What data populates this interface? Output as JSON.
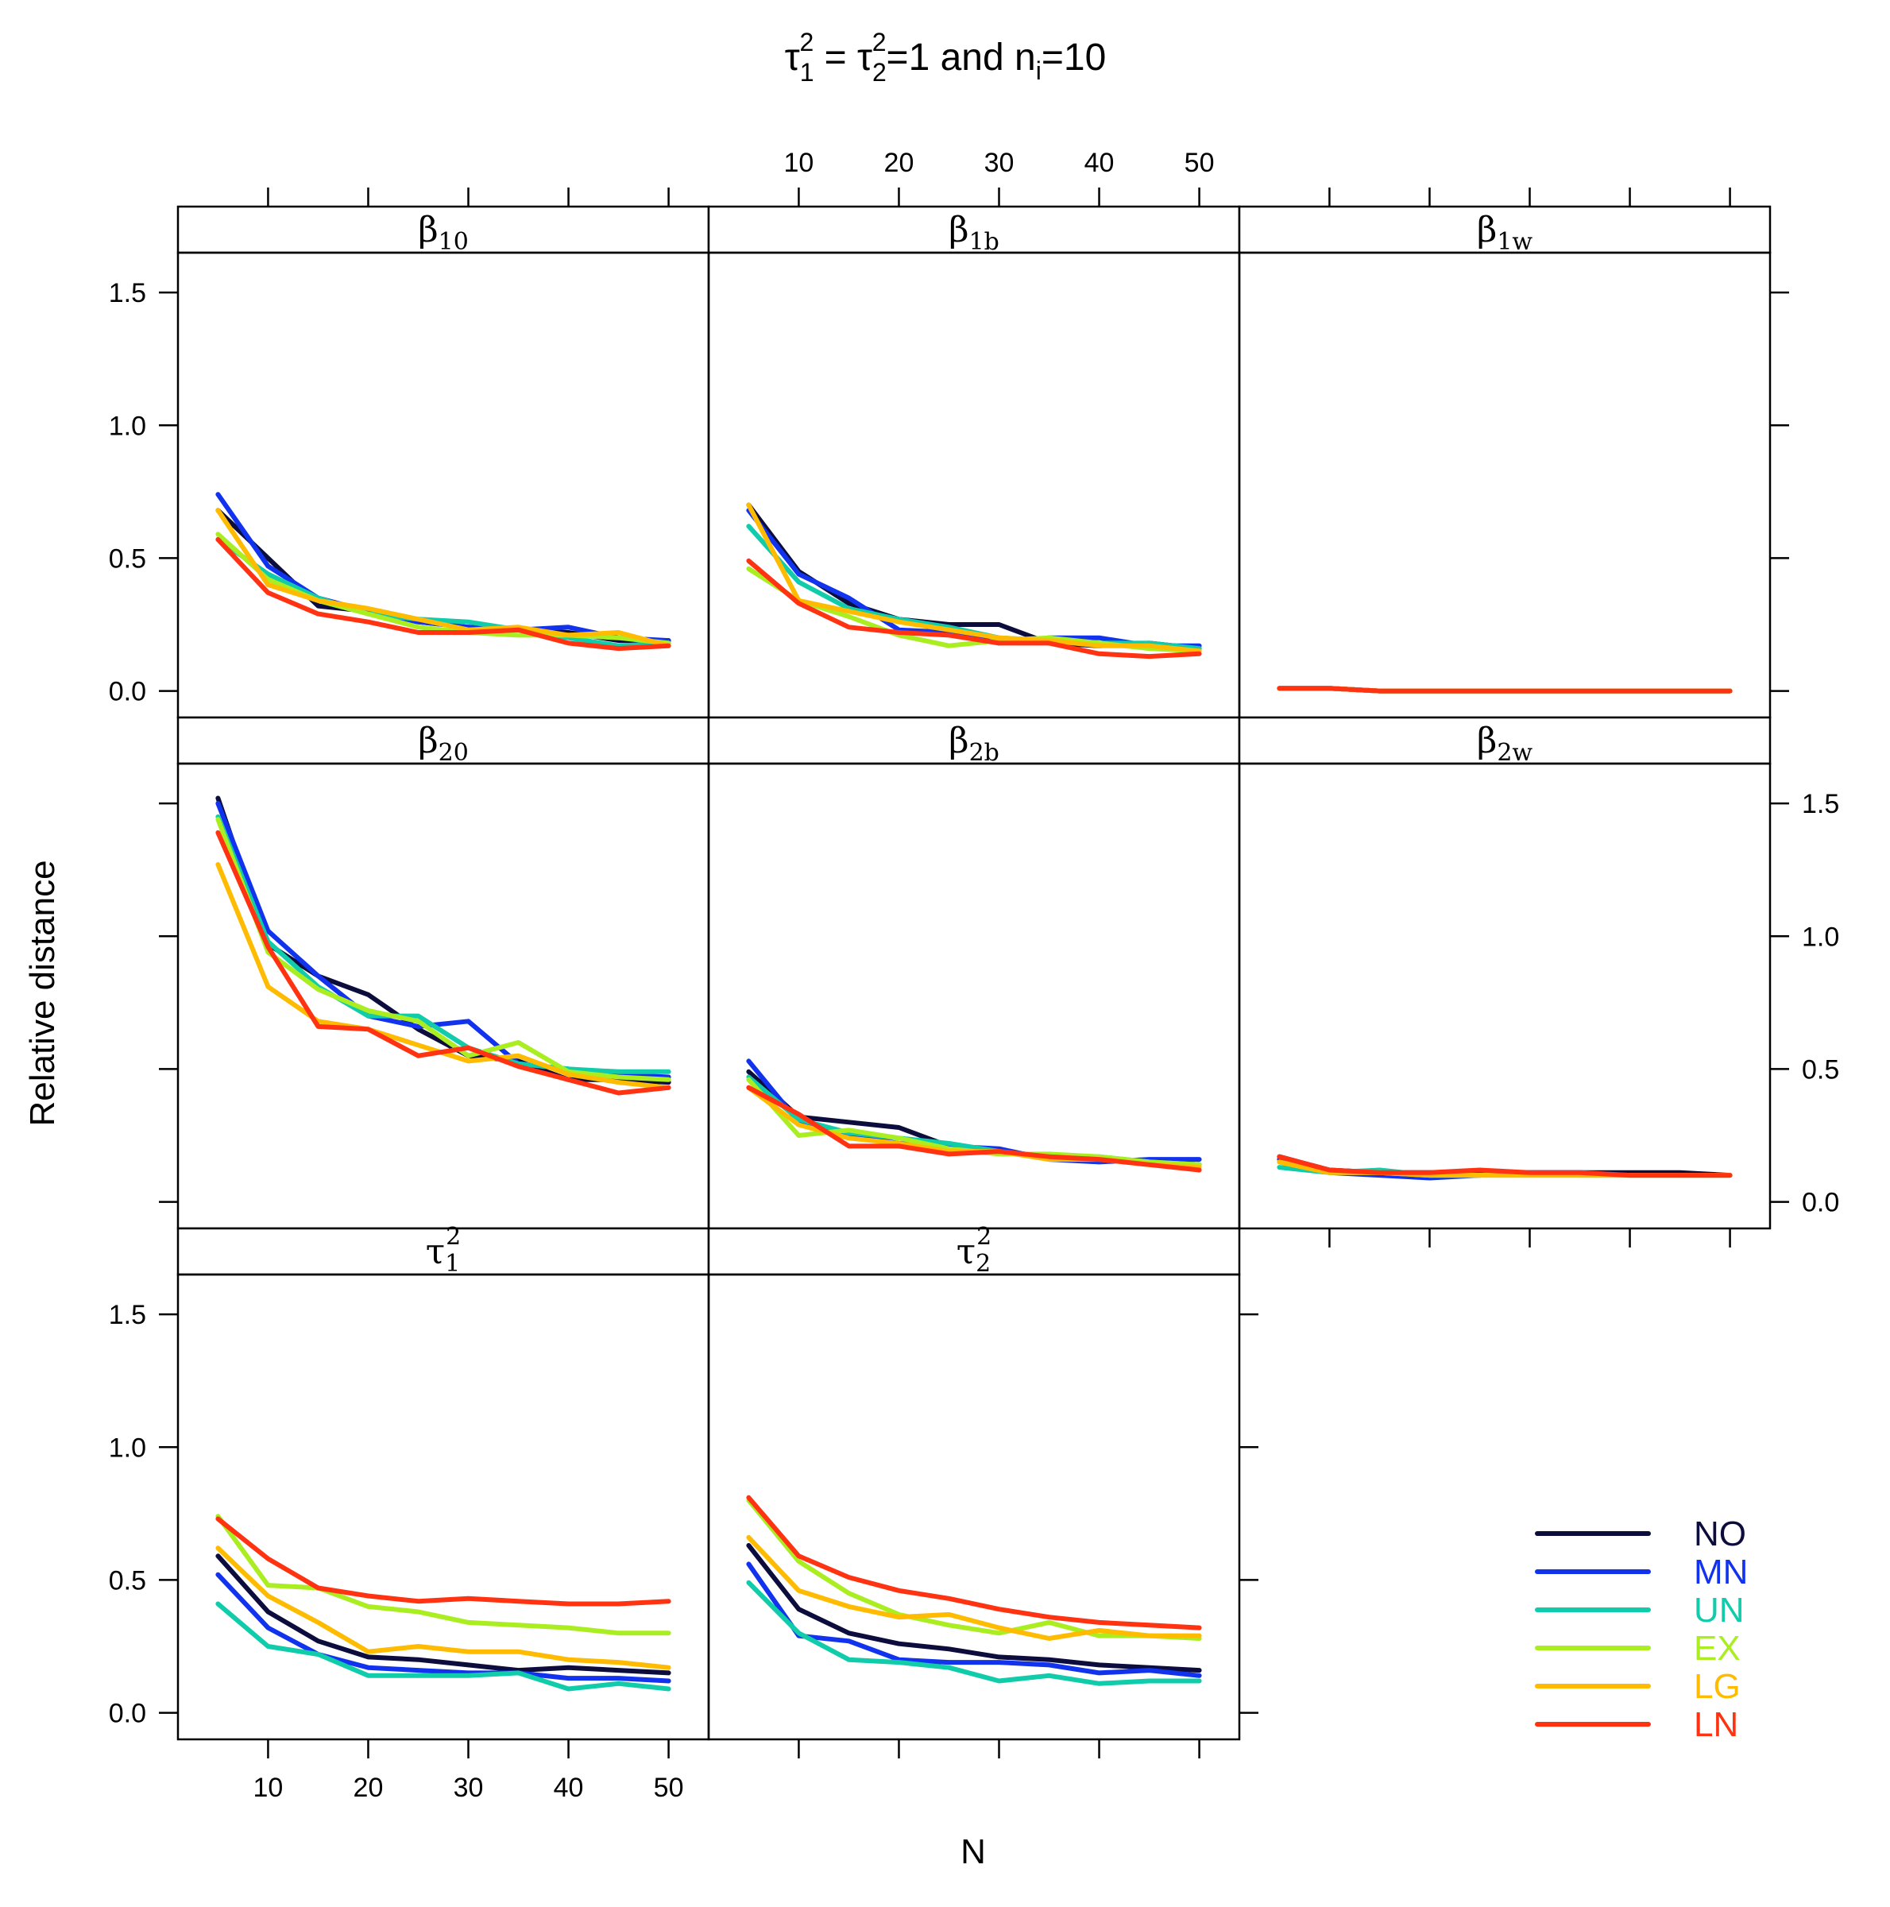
{
  "chart_data": {
    "type": "line",
    "title": {
      "tau": "τ",
      "sub1": "1",
      "sup1": "2",
      "eq": " = ",
      "sub2": "2",
      "sup2": "2",
      "rest1": "=1 and n",
      "subi": "i",
      "rest2": "=10"
    },
    "xlabel": "N",
    "ylabel": "Relative distance",
    "xlim": [
      1,
      54
    ],
    "ylim": [
      -0.1,
      1.65
    ],
    "x_ticks": [
      10,
      20,
      30,
      40,
      50
    ],
    "y_ticks": [
      0.0,
      0.5,
      1.0,
      1.5
    ],
    "x_tick_labels": [
      "10",
      "20",
      "30",
      "40",
      "50"
    ],
    "y_tick_labels": [
      "0.0",
      "0.5",
      "1.0",
      "1.5"
    ],
    "x": [
      5,
      10,
      15,
      20,
      25,
      30,
      35,
      40,
      45,
      50
    ],
    "legend": {
      "position": "bottom-right",
      "entries": [
        {
          "name": "NO",
          "color": "#0d0d3d"
        },
        {
          "name": "MN",
          "color": "#1133ee"
        },
        {
          "name": "UN",
          "color": "#11ccaa"
        },
        {
          "name": "EX",
          "color": "#aaee22"
        },
        {
          "name": "LG",
          "color": "#ffbb00"
        },
        {
          "name": "LN",
          "color": "#ff3311"
        }
      ]
    },
    "panels": [
      {
        "id": "beta10",
        "strip": {
          "sym": "β",
          "sub": "10"
        },
        "series": {
          "NO": [
            0.68,
            0.5,
            0.32,
            0.3,
            0.26,
            0.24,
            0.23,
            0.22,
            0.19,
            0.19
          ],
          "MN": [
            0.74,
            0.47,
            0.35,
            0.3,
            0.26,
            0.24,
            0.23,
            0.24,
            0.2,
            0.19
          ],
          "UN": [
            0.57,
            0.44,
            0.35,
            0.29,
            0.27,
            0.26,
            0.23,
            0.2,
            0.17,
            0.18
          ],
          "EX": [
            0.59,
            0.42,
            0.34,
            0.29,
            0.24,
            0.22,
            0.21,
            0.21,
            0.2,
            0.18
          ],
          "LG": [
            0.68,
            0.4,
            0.34,
            0.31,
            0.27,
            0.23,
            0.24,
            0.21,
            0.22,
            0.17
          ],
          "LN": [
            0.57,
            0.37,
            0.29,
            0.26,
            0.22,
            0.22,
            0.23,
            0.18,
            0.16,
            0.17
          ]
        }
      },
      {
        "id": "beta1b",
        "strip": {
          "sym": "β",
          "sub": "1b"
        },
        "series": {
          "NO": [
            0.7,
            0.45,
            0.33,
            0.27,
            0.25,
            0.25,
            0.18,
            0.17,
            0.18,
            0.16
          ],
          "MN": [
            0.68,
            0.44,
            0.35,
            0.23,
            0.22,
            0.18,
            0.2,
            0.2,
            0.17,
            0.17
          ],
          "UN": [
            0.62,
            0.41,
            0.31,
            0.27,
            0.24,
            0.2,
            0.19,
            0.18,
            0.18,
            0.16
          ],
          "EX": [
            0.46,
            0.34,
            0.28,
            0.21,
            0.17,
            0.19,
            0.2,
            0.18,
            0.16,
            0.15
          ],
          "LG": [
            0.7,
            0.34,
            0.3,
            0.26,
            0.23,
            0.2,
            0.19,
            0.17,
            0.17,
            0.15
          ],
          "LN": [
            0.49,
            0.33,
            0.24,
            0.22,
            0.21,
            0.18,
            0.18,
            0.14,
            0.13,
            0.14
          ]
        }
      },
      {
        "id": "beta1w",
        "strip": {
          "sym": "β",
          "sub": "1w"
        },
        "series": {
          "NO": [
            0.01,
            0.01,
            0.0,
            0.0,
            0.0,
            0.0,
            0.0,
            0.0,
            0.0,
            0.0
          ],
          "MN": [
            0.01,
            0.01,
            0.0,
            0.0,
            0.0,
            0.0,
            0.0,
            0.0,
            0.0,
            0.0
          ],
          "UN": [
            0.01,
            0.01,
            0.0,
            0.0,
            0.0,
            0.0,
            0.0,
            0.0,
            0.0,
            0.0
          ],
          "EX": [
            0.01,
            0.01,
            0.0,
            0.0,
            0.0,
            0.0,
            0.0,
            0.0,
            0.0,
            0.0
          ],
          "LG": [
            0.01,
            0.01,
            0.0,
            0.0,
            0.0,
            0.0,
            0.0,
            0.0,
            0.0,
            0.0
          ],
          "LN": [
            0.01,
            0.01,
            0.0,
            0.0,
            0.0,
            0.0,
            0.0,
            0.0,
            0.0,
            0.0
          ]
        }
      },
      {
        "id": "beta20",
        "strip": {
          "sym": "β",
          "sub": "20"
        },
        "series": {
          "NO": [
            1.52,
            0.97,
            0.85,
            0.78,
            0.65,
            0.55,
            0.53,
            0.46,
            0.46,
            0.45
          ],
          "MN": [
            1.5,
            1.02,
            0.85,
            0.7,
            0.66,
            0.68,
            0.52,
            0.5,
            0.48,
            0.47
          ],
          "UN": [
            1.45,
            0.98,
            0.81,
            0.7,
            0.7,
            0.58,
            0.52,
            0.5,
            0.49,
            0.49
          ],
          "EX": [
            1.44,
            0.94,
            0.8,
            0.72,
            0.68,
            0.55,
            0.6,
            0.49,
            0.47,
            0.46
          ],
          "LG": [
            1.27,
            0.81,
            0.68,
            0.65,
            0.59,
            0.53,
            0.55,
            0.48,
            0.45,
            0.43
          ],
          "LN": [
            1.39,
            0.96,
            0.66,
            0.65,
            0.55,
            0.58,
            0.51,
            0.46,
            0.41,
            0.43
          ]
        }
      },
      {
        "id": "beta2b",
        "strip": {
          "sym": "β",
          "sub": "2b"
        },
        "series": {
          "NO": [
            0.49,
            0.32,
            0.3,
            0.28,
            0.21,
            0.19,
            0.17,
            0.16,
            0.15,
            0.14
          ],
          "MN": [
            0.53,
            0.3,
            0.25,
            0.22,
            0.21,
            0.2,
            0.16,
            0.15,
            0.16,
            0.16
          ],
          "UN": [
            0.47,
            0.31,
            0.26,
            0.24,
            0.22,
            0.19,
            0.17,
            0.17,
            0.15,
            0.14
          ],
          "EX": [
            0.46,
            0.25,
            0.27,
            0.24,
            0.2,
            0.18,
            0.18,
            0.17,
            0.15,
            0.14
          ],
          "LG": [
            0.43,
            0.29,
            0.24,
            0.22,
            0.19,
            0.19,
            0.16,
            0.16,
            0.14,
            0.13
          ],
          "LN": [
            0.43,
            0.33,
            0.21,
            0.21,
            0.18,
            0.19,
            0.17,
            0.16,
            0.14,
            0.12
          ]
        }
      },
      {
        "id": "beta2w",
        "strip": {
          "sym": "β",
          "sub": "2w"
        },
        "series": {
          "NO": [
            0.17,
            0.12,
            0.11,
            0.11,
            0.11,
            0.11,
            0.11,
            0.11,
            0.11,
            0.1
          ],
          "MN": [
            0.16,
            0.11,
            0.1,
            0.09,
            0.1,
            0.11,
            0.11,
            0.1,
            0.1,
            0.1
          ],
          "UN": [
            0.13,
            0.11,
            0.12,
            0.1,
            0.1,
            0.11,
            0.1,
            0.1,
            0.1,
            0.1
          ],
          "EX": [
            0.15,
            0.11,
            0.11,
            0.1,
            0.1,
            0.1,
            0.1,
            0.1,
            0.1,
            0.1
          ],
          "LG": [
            0.15,
            0.11,
            0.11,
            0.1,
            0.1,
            0.1,
            0.1,
            0.1,
            0.1,
            0.1
          ],
          "LN": [
            0.17,
            0.12,
            0.11,
            0.11,
            0.12,
            0.11,
            0.11,
            0.1,
            0.1,
            0.1
          ]
        }
      },
      {
        "id": "tau1",
        "strip": {
          "sym": "τ",
          "sub": "1",
          "sup": "2"
        },
        "series": {
          "NO": [
            0.59,
            0.38,
            0.27,
            0.21,
            0.2,
            0.18,
            0.16,
            0.17,
            0.16,
            0.15
          ],
          "MN": [
            0.52,
            0.32,
            0.22,
            0.17,
            0.16,
            0.15,
            0.15,
            0.13,
            0.13,
            0.12
          ],
          "UN": [
            0.41,
            0.25,
            0.22,
            0.14,
            0.14,
            0.14,
            0.15,
            0.09,
            0.11,
            0.09
          ],
          "EX": [
            0.74,
            0.48,
            0.47,
            0.4,
            0.38,
            0.34,
            0.33,
            0.32,
            0.3,
            0.3
          ],
          "LG": [
            0.62,
            0.44,
            0.34,
            0.23,
            0.25,
            0.23,
            0.23,
            0.2,
            0.19,
            0.17
          ],
          "LN": [
            0.73,
            0.58,
            0.47,
            0.44,
            0.42,
            0.43,
            0.42,
            0.41,
            0.41,
            0.42
          ]
        }
      },
      {
        "id": "tau2",
        "strip": {
          "sym": "τ",
          "sub": "2",
          "sup": "2"
        },
        "series": {
          "NO": [
            0.63,
            0.39,
            0.3,
            0.26,
            0.24,
            0.21,
            0.2,
            0.18,
            0.17,
            0.16
          ],
          "MN": [
            0.56,
            0.29,
            0.27,
            0.2,
            0.19,
            0.19,
            0.18,
            0.15,
            0.16,
            0.14
          ],
          "UN": [
            0.49,
            0.3,
            0.2,
            0.19,
            0.17,
            0.12,
            0.14,
            0.11,
            0.12,
            0.12
          ],
          "EX": [
            0.8,
            0.57,
            0.45,
            0.37,
            0.33,
            0.3,
            0.34,
            0.29,
            0.29,
            0.28
          ],
          "LG": [
            0.66,
            0.46,
            0.4,
            0.36,
            0.37,
            0.32,
            0.28,
            0.31,
            0.29,
            0.29
          ],
          "LN": [
            0.81,
            0.59,
            0.51,
            0.46,
            0.43,
            0.39,
            0.36,
            0.34,
            0.33,
            0.32
          ]
        }
      }
    ]
  }
}
